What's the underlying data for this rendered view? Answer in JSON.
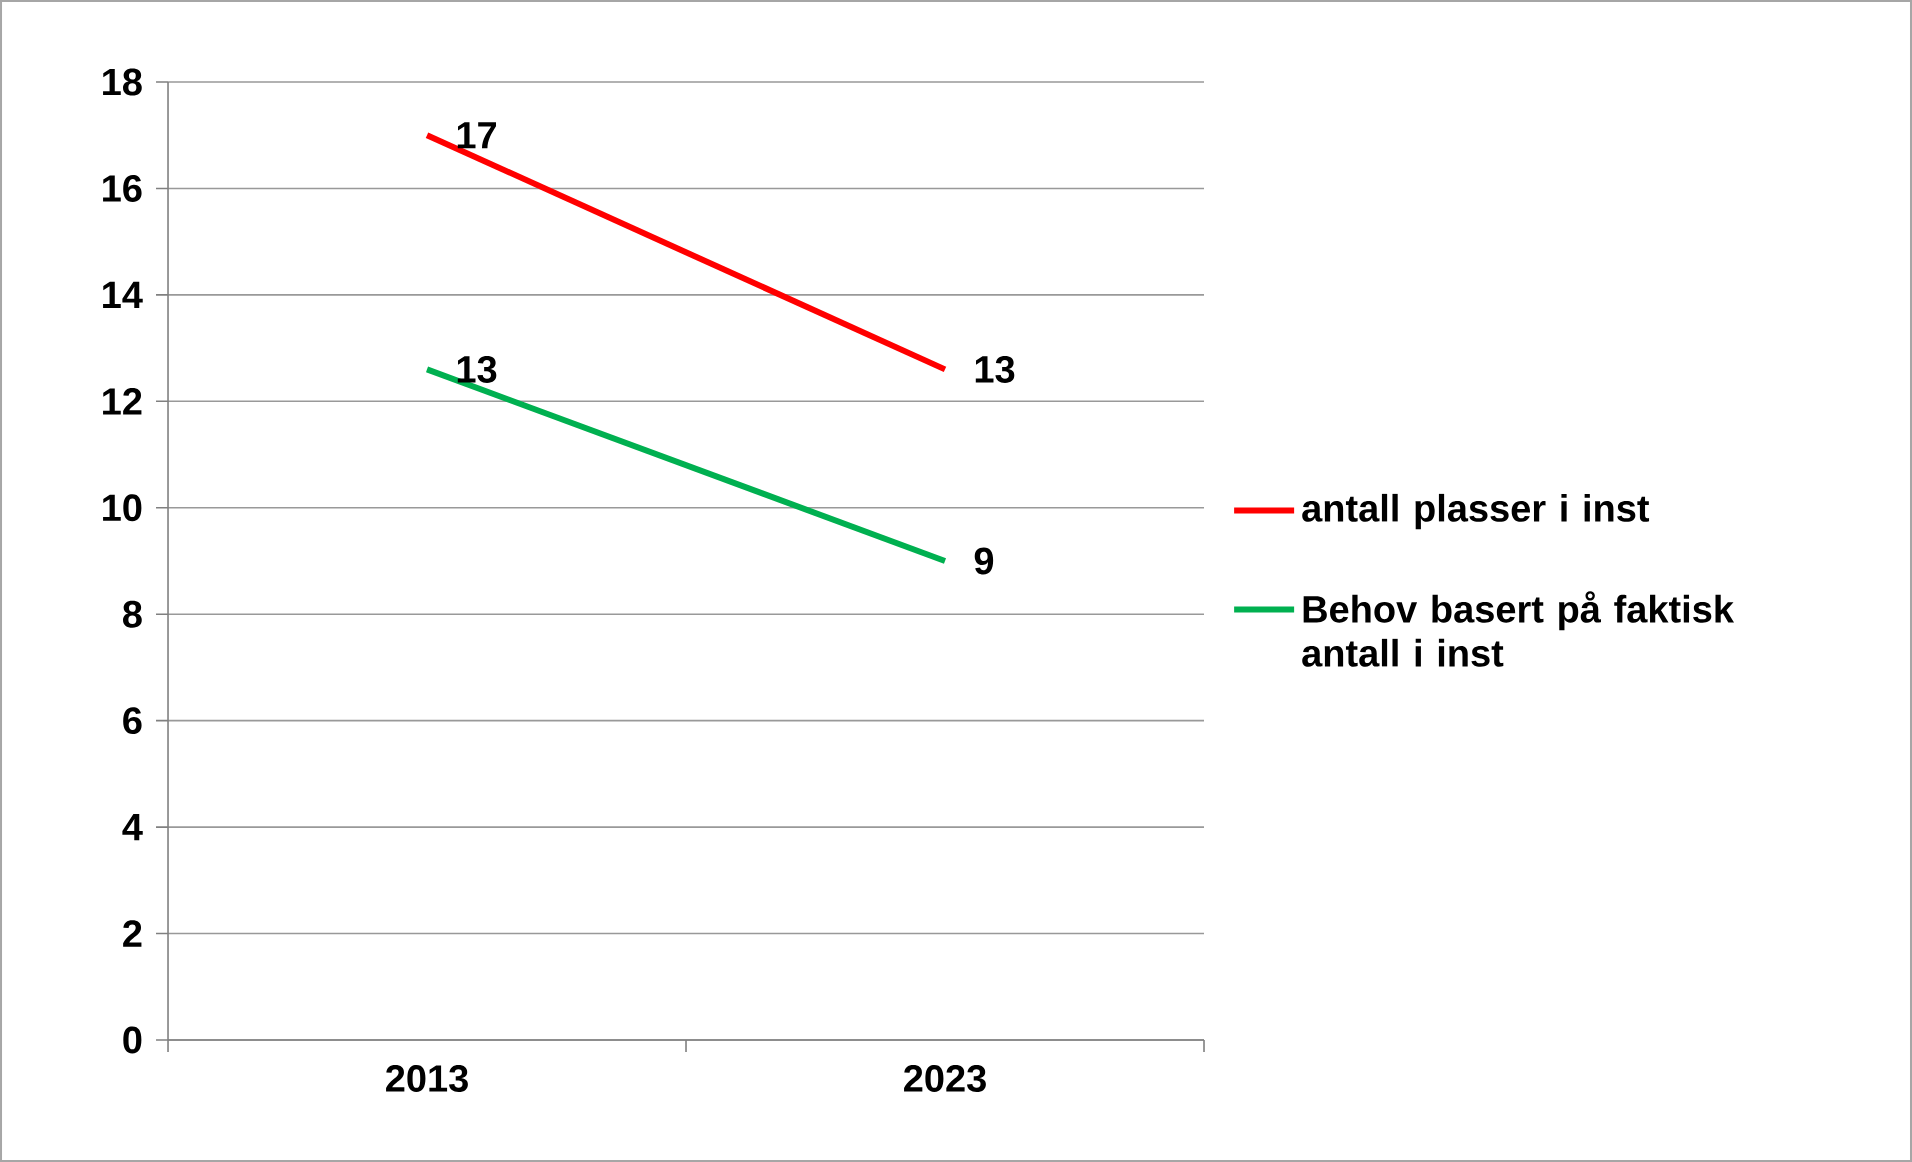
{
  "chart_data": {
    "type": "line",
    "categories": [
      "2013",
      "2023"
    ],
    "series": [
      {
        "name": "antall plasser i inst",
        "color": "#ff0000",
        "values": [
          17,
          12.6
        ],
        "value_labels": [
          "17",
          "13"
        ]
      },
      {
        "name": "Behov basert på faktisk antall i inst",
        "color": "#00b050",
        "values": [
          12.6,
          9
        ],
        "value_labels": [
          "13",
          "9"
        ]
      }
    ],
    "ylim": [
      0,
      18
    ],
    "yticks": [
      0,
      2,
      4,
      6,
      8,
      10,
      12,
      14,
      16,
      18
    ],
    "grid": "y",
    "legend": "right",
    "marker": "none",
    "line_style": "solid"
  }
}
